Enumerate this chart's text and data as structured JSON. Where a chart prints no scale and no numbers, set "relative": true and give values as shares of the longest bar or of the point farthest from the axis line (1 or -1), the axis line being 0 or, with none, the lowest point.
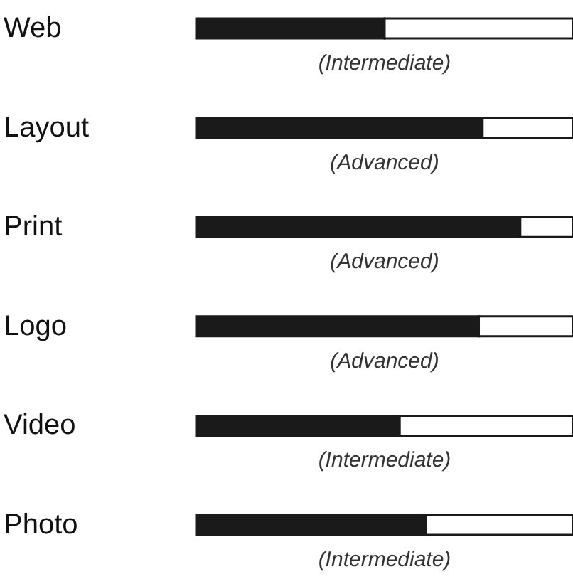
{
  "chart_data": {
    "type": "bar",
    "orientation": "horizontal",
    "stacked": true,
    "relative": true,
    "categories": [
      "Web",
      "Layout",
      "Print",
      "Logo",
      "Video",
      "Photo"
    ],
    "series": [
      {
        "color": "#1a1a1a",
        "values": [
          0.5,
          0.76,
          0.86,
          0.75,
          0.54,
          0.61
        ]
      },
      {
        "color": "#ffffff",
        "values": [
          0.5,
          0.24,
          0.14,
          0.25,
          0.46,
          0.39
        ]
      }
    ],
    "annotations": [
      "(Intermediate)",
      "(Advanced)",
      "(Advanced)",
      "(Advanced)",
      "(Intermediate)",
      "(Intermediate)"
    ]
  }
}
